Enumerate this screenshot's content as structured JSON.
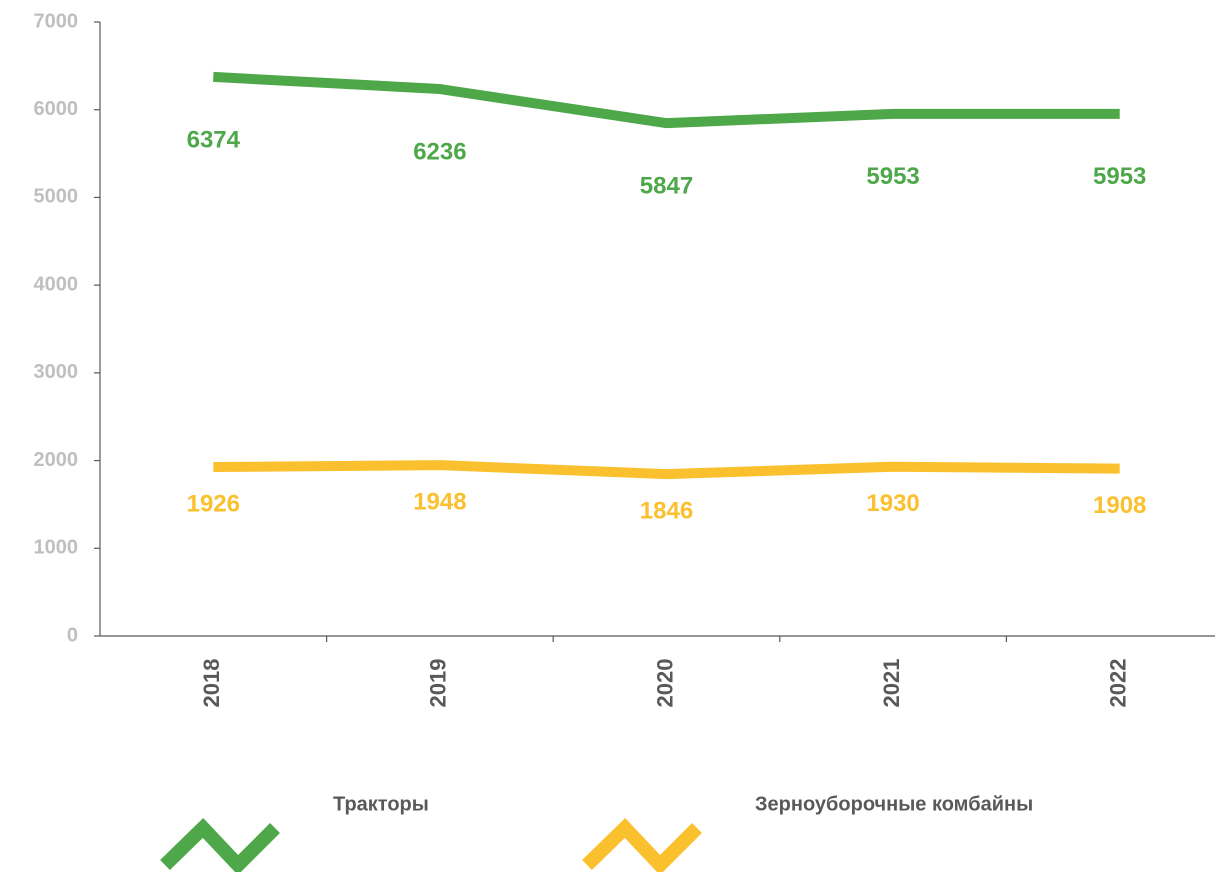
{
  "chart_data": {
    "type": "line",
    "categories": [
      "2018",
      "2019",
      "2020",
      "2021",
      "2022"
    ],
    "series": [
      {
        "name": "Тракторы",
        "color": "#4ea84a",
        "values": [
          6374,
          6236,
          5847,
          5953,
          5953
        ]
      },
      {
        "name": "Зерноуборочные комбайны",
        "color": "#fbc02d",
        "values": [
          1926,
          1948,
          1846,
          1930,
          1908
        ]
      }
    ],
    "ylim": [
      0,
      7000
    ],
    "yticks": [
      0,
      1000,
      2000,
      3000,
      4000,
      5000,
      6000,
      7000
    ],
    "grid": false
  }
}
